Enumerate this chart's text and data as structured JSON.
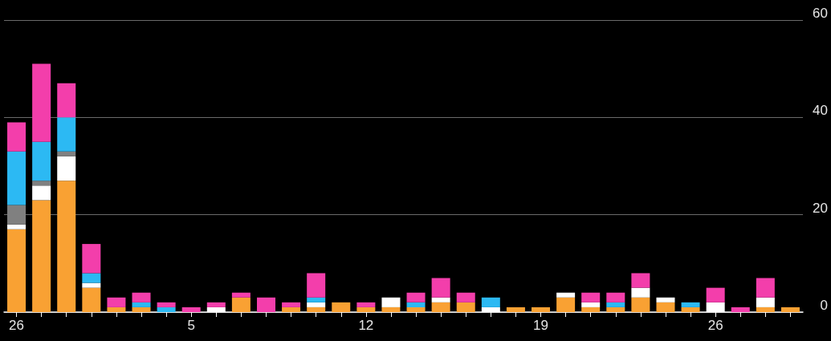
{
  "chart_data": {
    "type": "bar",
    "stacked": true,
    "categories": [
      "26",
      null,
      null,
      null,
      null,
      null,
      null,
      "5",
      null,
      null,
      null,
      null,
      null,
      null,
      "12",
      null,
      null,
      null,
      null,
      null,
      null,
      "19",
      null,
      null,
      null,
      null,
      null,
      null,
      "26",
      null,
      null,
      null
    ],
    "series": [
      {
        "color": "#f9a133",
        "values": [
          17,
          23,
          27,
          5,
          1,
          1,
          0,
          0,
          0,
          3,
          0,
          1,
          1,
          2,
          1,
          1,
          1,
          2,
          2,
          0,
          1,
          1,
          3,
          1,
          1,
          3,
          2,
          1,
          0,
          0,
          1,
          1
        ]
      },
      {
        "color": "#ffffff",
        "values": [
          1,
          3,
          5,
          1,
          0,
          0,
          0,
          0,
          1,
          0,
          0,
          0,
          1,
          0,
          0,
          2,
          0,
          1,
          0,
          1,
          0,
          0,
          1,
          1,
          0,
          2,
          1,
          0,
          2,
          0,
          2,
          0
        ]
      },
      {
        "color": "#808080",
        "values": [
          4,
          1,
          1,
          0,
          0,
          0,
          0,
          0,
          0,
          0,
          0,
          0,
          0,
          0,
          0,
          0,
          0,
          0,
          0,
          0,
          0,
          0,
          0,
          0,
          0,
          0,
          0,
          0,
          0,
          0,
          0,
          0
        ]
      },
      {
        "color": "#2cb9f3",
        "values": [
          11,
          8,
          7,
          2,
          0,
          1,
          1,
          0,
          0,
          0,
          0,
          0,
          1,
          0,
          0,
          0,
          1,
          0,
          0,
          2,
          0,
          0,
          0,
          0,
          1,
          0,
          0,
          1,
          0,
          0,
          0,
          0
        ]
      },
      {
        "color": "#f33eab",
        "values": [
          6,
          16,
          7,
          6,
          2,
          2,
          1,
          1,
          1,
          1,
          3,
          1,
          5,
          0,
          1,
          0,
          2,
          4,
          2,
          0,
          0,
          0,
          0,
          2,
          2,
          3,
          0,
          0,
          3,
          1,
          4,
          0
        ]
      }
    ],
    "ylim": [
      0,
      60
    ],
    "yticks": [
      0,
      20,
      40,
      60
    ],
    "grid": "y"
  }
}
